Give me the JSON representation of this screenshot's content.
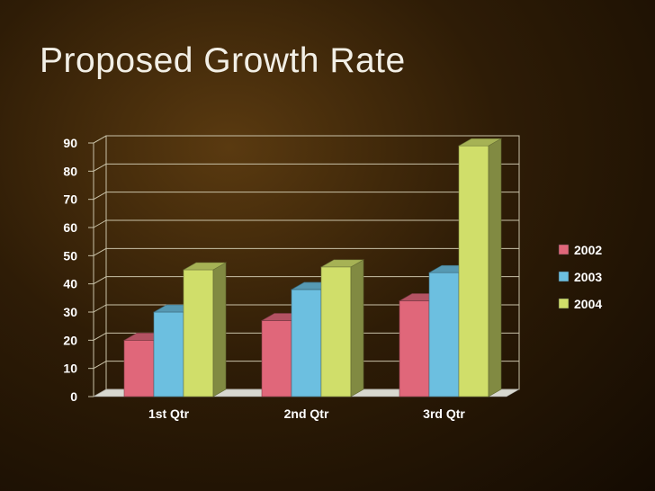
{
  "slide": {
    "title": "Proposed Growth Rate"
  },
  "colors": {
    "2002": "#e0677a",
    "2003": "#6cbfe0",
    "2004": "#d0de6a",
    "grid": "#c9c2a8",
    "floor": "#d8d8d0"
  },
  "chart_data": {
    "type": "bar",
    "categories": [
      "1st Qtr",
      "2nd Qtr",
      "3rd Qtr"
    ],
    "series": [
      {
        "name": "2002",
        "values": [
          20,
          27,
          34
        ]
      },
      {
        "name": "2003",
        "values": [
          30,
          38,
          44
        ]
      },
      {
        "name": "2004",
        "values": [
          45,
          46,
          89
        ]
      }
    ],
    "yticks": [
      "0",
      "10",
      "20",
      "30",
      "40",
      "50",
      "60",
      "70",
      "80",
      "90"
    ],
    "ylim": [
      0,
      90
    ],
    "grid": true,
    "legend_position": "right",
    "style": "3d-clustered"
  }
}
